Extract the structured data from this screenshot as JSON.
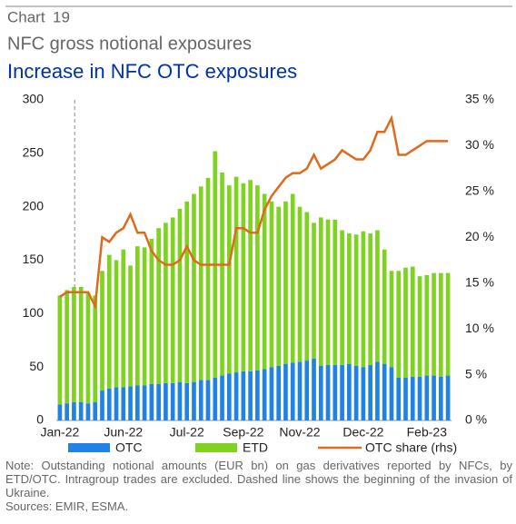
{
  "chart_data": {
    "type": "bar-line",
    "header": [
      "Chart",
      "19"
    ],
    "title": "NFC gross notional exposures",
    "subtitle": "Increase in NFC OTC exposures",
    "categories": [
      "Jan-22",
      null,
      null,
      null,
      null,
      null,
      null,
      null,
      null,
      "Jun-22",
      null,
      null,
      null,
      null,
      null,
      null,
      null,
      null,
      "Jul-22",
      null,
      null,
      null,
      null,
      null,
      null,
      null,
      "Sep-22",
      null,
      null,
      null,
      null,
      null,
      null,
      null,
      "Nov-22",
      null,
      null,
      null,
      null,
      null,
      null,
      null,
      null,
      "Dec-22",
      null,
      null,
      null,
      null,
      null,
      null,
      null,
      null,
      "Feb-23",
      null,
      null,
      null
    ],
    "series": [
      {
        "name": "OTC",
        "color": "#1f82e6",
        "values": [
          15,
          16,
          17,
          17,
          16,
          17,
          28,
          30,
          31,
          31,
          32,
          33,
          33,
          34,
          34,
          35,
          35,
          36,
          35,
          36,
          38,
          38,
          40,
          42,
          44,
          45,
          46,
          46,
          47,
          48,
          50,
          51,
          53,
          54,
          55,
          56,
          58,
          51,
          52,
          52,
          52,
          53,
          51,
          50,
          52,
          55,
          53,
          50,
          40,
          40,
          41,
          41,
          42,
          42,
          41,
          42
        ]
      },
      {
        "name": "ETD",
        "color": "#7ed321",
        "values": [
          102,
          106,
          108,
          108,
          104,
          100,
          112,
          125,
          119,
          129,
          113,
          130,
          129,
          136,
          146,
          150,
          155,
          162,
          170,
          176,
          181,
          189,
          212,
          190,
          176,
          183,
          176,
          179,
          173,
          164,
          155,
          149,
          152,
          158,
          145,
          139,
          127,
          139,
          136,
          136,
          126,
          122,
          123,
          127,
          123,
          123,
          107,
          90,
          100,
          103,
          103,
          94,
          94,
          96,
          97,
          96
        ]
      },
      {
        "name": "OTC share (rhs)",
        "color": "#e0691a",
        "axis": "y2",
        "values": [
          13.5,
          14,
          14,
          14,
          14,
          12.5,
          20,
          19.5,
          20.5,
          21,
          22.5,
          20.5,
          20.5,
          18.5,
          17.5,
          17,
          17,
          17.5,
          19,
          17.5,
          17,
          17,
          17,
          17,
          17,
          21,
          21,
          20.5,
          20.5,
          23,
          24.5,
          25.5,
          26.5,
          27,
          27,
          27.5,
          29,
          27.5,
          28,
          28.5,
          29.5,
          29,
          28.5,
          28.5,
          29.5,
          31.5,
          31.5,
          33,
          29,
          29,
          29.5,
          30,
          30.5,
          30.5,
          30.5,
          30.5
        ]
      }
    ],
    "ylim": [
      0,
      300
    ],
    "yticks": [
      0,
      50,
      100,
      150,
      200,
      250,
      300
    ],
    "y2lim": [
      0,
      35
    ],
    "y2ticks": [
      {
        "value": 0,
        "label": "0 %"
      },
      {
        "value": 5,
        "label": "5 %"
      },
      {
        "value": 10,
        "label": "10 %"
      },
      {
        "value": 15,
        "label": "15 %"
      },
      {
        "value": 20,
        "label": "20 %"
      },
      {
        "value": 25,
        "label": "25 %"
      },
      {
        "value": 30,
        "label": "30 %"
      },
      {
        "value": 35,
        "label": "35 %"
      }
    ],
    "legend": "bottom",
    "note": "Note: Outstanding notional amounts (EUR bn) on gas derivatives reported by NFCs, by ETD/OTC. Intragroup trades are excluded. Dashed line shows the beginning of the invasion of Ukraine.",
    "sources": "Sources: EMIR, ESMA."
  }
}
